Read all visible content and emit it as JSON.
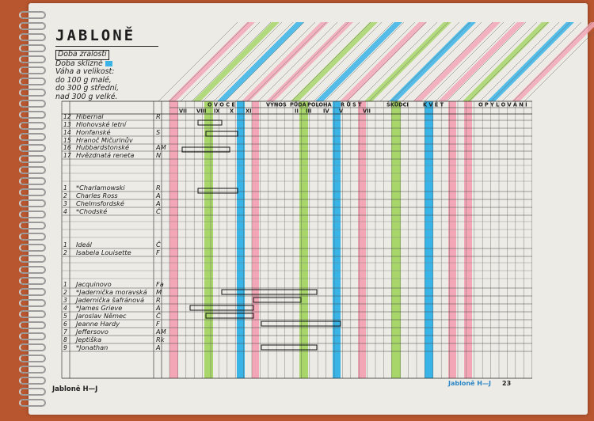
{
  "title": "JABLONĚ",
  "legend": {
    "line1": "Doba zralosti",
    "line2": "Doba sklizně",
    "line3": "Váha a velikost:",
    "line4": "do 100 g malé,",
    "line5": "do 300 g střední,",
    "line6": "nad 300 g velké."
  },
  "colors": {
    "pink": "#f3a7b6",
    "green": "#a8d66a",
    "blue": "#3ab4e6"
  },
  "column_headers": {
    "ovoce": "O V O C E",
    "vynos": "VÝNOS",
    "puda": "PŮDA",
    "poloha": "POLOHA",
    "rust": "R Ů S T",
    "skudci": "ŠKŮDCI",
    "kvet": "K V Ě T",
    "opylovani": "O P Y L O V Á N Í"
  },
  "month_labels": [
    "VII",
    "VIII",
    "IX",
    "X",
    "XI",
    "II",
    "III",
    "IV",
    "V",
    "VII"
  ],
  "varieties": [
    {
      "num": "12",
      "name": "Hibernal",
      "code": "R"
    },
    {
      "num": "13",
      "name": "Hlohovské letní",
      "code": ""
    },
    {
      "num": "14",
      "name": "Honfanské",
      "code": "S"
    },
    {
      "num": "15",
      "name": "Hranoč Mičurinův",
      "code": ""
    },
    {
      "num": "16",
      "name": "Hubbardstonské",
      "code": "AM"
    },
    {
      "num": "17",
      "name": "Hvězdnatá reneta",
      "code": "N"
    },
    {
      "num": "1",
      "name": "*Charlamowski",
      "code": "R"
    },
    {
      "num": "2",
      "name": "Charles Ross",
      "code": "A"
    },
    {
      "num": "3",
      "name": "Chelmsfordské",
      "code": "A"
    },
    {
      "num": "4",
      "name": "*Chodské",
      "code": "Č"
    },
    {
      "num": "1",
      "name": "Ideál",
      "code": "Č"
    },
    {
      "num": "2",
      "name": "Isabela Louisette",
      "code": "F"
    },
    {
      "num": "1",
      "name": "Jacquinovo",
      "code": "Fa"
    },
    {
      "num": "2",
      "name": "*Jadernička moravská",
      "code": "M"
    },
    {
      "num": "3",
      "name": "Jadernička šafránová",
      "code": "R"
    },
    {
      "num": "4",
      "name": "*James Grieve",
      "code": "A"
    },
    {
      "num": "5",
      "name": "Jaroslav Němec",
      "code": "Č"
    },
    {
      "num": "6",
      "name": "Jeanne Hardy",
      "code": "F"
    },
    {
      "num": "7",
      "name": "Jeffersovo",
      "code": "AM"
    },
    {
      "num": "8",
      "name": "Jeptiška",
      "code": "Rk"
    },
    {
      "num": "9",
      "name": "*Jonathan",
      "code": "A"
    }
  ],
  "footer": {
    "left": "Jabloně H—J",
    "right": "Jabloně H—J",
    "page": "23"
  }
}
